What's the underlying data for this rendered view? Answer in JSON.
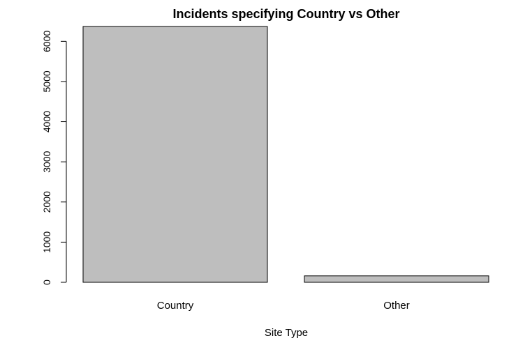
{
  "chart_data": {
    "type": "bar",
    "title": "Incidents specifying Country vs Other",
    "xlabel": "Site Type",
    "ylabel": "",
    "categories": [
      "Country",
      "Other"
    ],
    "values": [
      6370,
      160
    ],
    "ylim": [
      0,
      6370
    ],
    "yticks": [
      0,
      1000,
      2000,
      3000,
      4000,
      5000,
      6000
    ],
    "bar_color": "#bebebe",
    "grid": false,
    "legend": "none"
  }
}
